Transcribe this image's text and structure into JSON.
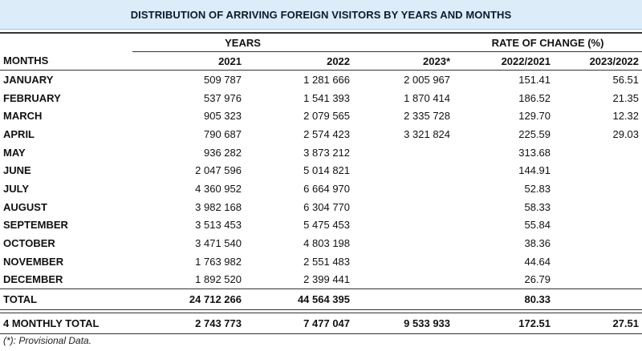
{
  "title": "DISTRIBUTION OF ARRIVING FOREIGN VISITORS BY YEARS AND MONTHS",
  "header": {
    "years_group": "YEARS",
    "rate_group": "RATE OF CHANGE (%)",
    "months_label": "MONTHS",
    "columns": [
      "2021",
      "2022",
      "2023*",
      "2022/2021",
      "2023/2022"
    ]
  },
  "rows": [
    {
      "month": "JANUARY",
      "y2021": "509 787",
      "y2022": "1 281 666",
      "y2023": "2 005 967",
      "r22_21": "151.41",
      "r23_22": "56.51"
    },
    {
      "month": "FEBRUARY",
      "y2021": "537 976",
      "y2022": "1 541 393",
      "y2023": "1 870 414",
      "r22_21": "186.52",
      "r23_22": "21.35"
    },
    {
      "month": "MARCH",
      "y2021": "905 323",
      "y2022": "2 079 565",
      "y2023": "2 335 728",
      "r22_21": "129.70",
      "r23_22": "12.32"
    },
    {
      "month": "APRIL",
      "y2021": "790 687",
      "y2022": "2 574 423",
      "y2023": "3 321 824",
      "r22_21": "225.59",
      "r23_22": "29.03"
    },
    {
      "month": "MAY",
      "y2021": "936 282",
      "y2022": "3 873 212",
      "y2023": "",
      "r22_21": "313.68",
      "r23_22": ""
    },
    {
      "month": "JUNE",
      "y2021": "2 047 596",
      "y2022": "5 014 821",
      "y2023": "",
      "r22_21": "144.91",
      "r23_22": ""
    },
    {
      "month": "JULY",
      "y2021": "4 360 952",
      "y2022": "6 664 970",
      "y2023": "",
      "r22_21": "52.83",
      "r23_22": ""
    },
    {
      "month": "AUGUST",
      "y2021": "3 982 168",
      "y2022": "6 304 770",
      "y2023": "",
      "r22_21": "58.33",
      "r23_22": ""
    },
    {
      "month": "SEPTEMBER",
      "y2021": "3 513 453",
      "y2022": "5 475 453",
      "y2023": "",
      "r22_21": "55.84",
      "r23_22": ""
    },
    {
      "month": "OCTOBER",
      "y2021": "3 471 540",
      "y2022": "4 803 198",
      "y2023": "",
      "r22_21": "38.36",
      "r23_22": ""
    },
    {
      "month": "NOVEMBER",
      "y2021": "1 763 982",
      "y2022": "2 551 483",
      "y2023": "",
      "r22_21": "44.64",
      "r23_22": ""
    },
    {
      "month": "DECEMBER",
      "y2021": "1 892 520",
      "y2022": "2 399 441",
      "y2023": "",
      "r22_21": "26.79",
      "r23_22": ""
    }
  ],
  "total": {
    "label": "TOTAL",
    "y2021": "24 712 266",
    "y2022": "44 564 395",
    "y2023": "",
    "r22_21": "80.33",
    "r23_22": ""
  },
  "four_monthly": {
    "label": "4 MONTHLY TOTAL",
    "y2021": "2 743 773",
    "y2022": "7 477 047",
    "y2023": "9 533 933",
    "r22_21": "172.51",
    "r23_22": "27.51"
  },
  "footnote": "(*): Provisional Data."
}
